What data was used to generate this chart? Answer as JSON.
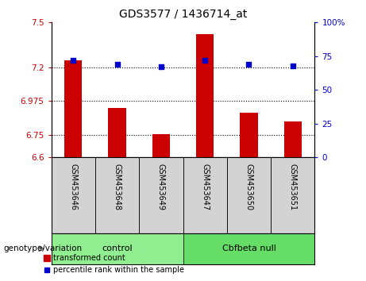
{
  "title": "GDS3577 / 1436714_at",
  "samples": [
    "GSM453646",
    "GSM453648",
    "GSM453649",
    "GSM453647",
    "GSM453650",
    "GSM453651"
  ],
  "bar_values": [
    7.25,
    6.93,
    6.755,
    7.42,
    6.9,
    6.84
  ],
  "dot_values": [
    72,
    69,
    67,
    72,
    69,
    68
  ],
  "bar_bottom": 6.6,
  "ylim_left": [
    6.6,
    7.5
  ],
  "ylim_right": [
    0,
    100
  ],
  "yticks_left": [
    6.6,
    6.75,
    6.975,
    7.2,
    7.5
  ],
  "ytick_labels_left": [
    "6.6",
    "6.75",
    "6.975",
    "7.2",
    "7.5"
  ],
  "yticks_right": [
    0,
    25,
    50,
    75,
    100
  ],
  "ytick_labels_right": [
    "0",
    "25",
    "50",
    "75",
    "100%"
  ],
  "hlines": [
    6.75,
    6.975,
    7.2
  ],
  "bar_color": "#cc0000",
  "dot_color": "#0000cc",
  "bar_width": 0.4,
  "groups": [
    {
      "label": "control",
      "indices": [
        0,
        1,
        2
      ],
      "color": "#90ee90"
    },
    {
      "label": "Cbfbeta null",
      "indices": [
        3,
        4,
        5
      ],
      "color": "#66dd66"
    }
  ],
  "group_label": "genotype/variation",
  "legend_bar_label": "transformed count",
  "legend_dot_label": "percentile rank within the sample",
  "bg_color": "#ffffff",
  "tick_color_left": "#cc0000",
  "tick_color_right": "#0000cc",
  "label_box_color": "#d3d3d3",
  "title_fontsize": 10,
  "tick_fontsize": 7.5,
  "sample_fontsize": 7,
  "group_fontsize": 8,
  "legend_fontsize": 7
}
